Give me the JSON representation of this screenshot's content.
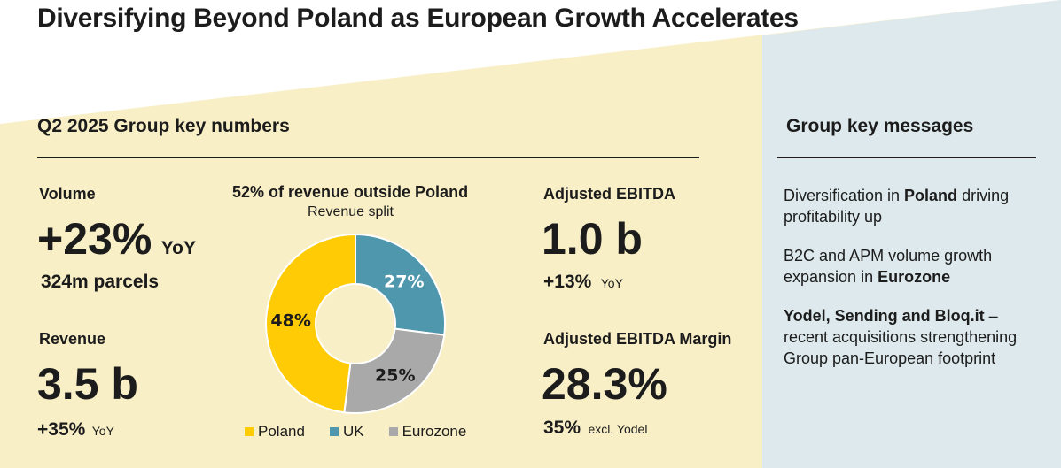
{
  "title": "Diversifying Beyond Poland as European Growth Accelerates",
  "colors": {
    "yellow_bg": "#f9efc7",
    "blue_bg": "#dde9ec",
    "poland": "#ffcb05",
    "uk": "#4e97ad",
    "eurozone": "#a9a9a9"
  },
  "left": {
    "heading": "Q2 2025 Group key numbers",
    "volume": {
      "label": "Volume",
      "value": "+23%",
      "value_suffix": "YoY",
      "sub": "324m parcels"
    },
    "revenue": {
      "label": "Revenue",
      "value": "3.5 b",
      "change": "+35%",
      "change_suffix": "YoY"
    },
    "ebitda": {
      "label": "Adjusted EBITDA",
      "value": "1.0 b",
      "change": "+13%",
      "change_suffix": "YoY"
    },
    "margin": {
      "label": "Adjusted EBITDA Margin",
      "value": "28.3%",
      "change": "35%",
      "change_suffix": "excl. Yodel"
    }
  },
  "chart_data": {
    "type": "pie",
    "title": "52% of revenue outside Poland",
    "subtitle": "Revenue split",
    "categories": [
      "Poland",
      "UK",
      "Eurozone"
    ],
    "values": [
      48,
      27,
      25
    ],
    "labels": [
      "48%",
      "27%",
      "25%"
    ],
    "colors": [
      "#ffcb05",
      "#4e97ad",
      "#a9a9a9"
    ],
    "donut": true,
    "legend_position": "bottom"
  },
  "right": {
    "heading": "Group key messages",
    "messages": [
      {
        "pre": "Diversification in ",
        "bold": "Poland",
        "post": " driving profitability up"
      },
      {
        "pre": "B2C and APM volume growth expansion in ",
        "bold": "Eurozone",
        "post": ""
      },
      {
        "pre": "",
        "bold": "Yodel, Sending and Bloq.it",
        "post": " – recent acquisitions strengthening Group pan-European footprint"
      }
    ]
  }
}
